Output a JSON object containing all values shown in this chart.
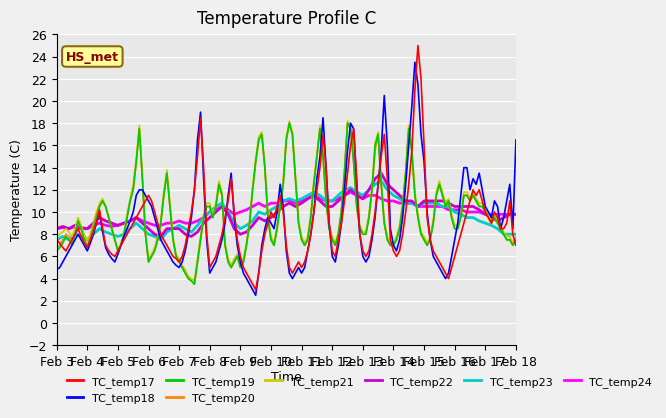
{
  "title": "Temperature Profile C",
  "xlabel": "Time",
  "ylabel": "Temperature (C)",
  "annotation": "HS_met",
  "ylim": [
    -2,
    26
  ],
  "series": {
    "TC_temp17": {
      "color": "#FF0000",
      "x_start": 3,
      "x_end": 18,
      "n": 151,
      "y": [
        7.5,
        7.2,
        6.8,
        6.5,
        7.0,
        7.5,
        8.0,
        8.5,
        7.8,
        7.2,
        6.8,
        7.5,
        8.2,
        9.0,
        10.2,
        8.5,
        7.0,
        6.5,
        6.2,
        6.0,
        6.5,
        7.0,
        7.5,
        8.0,
        8.5,
        9.0,
        9.5,
        10.0,
        10.5,
        11.0,
        11.5,
        11.0,
        10.0,
        9.0,
        8.0,
        7.5,
        7.0,
        6.5,
        6.0,
        5.8,
        5.5,
        6.0,
        7.0,
        8.5,
        10.0,
        12.0,
        15.0,
        18.5,
        14.0,
        8.0,
        5.0,
        5.5,
        6.0,
        7.0,
        8.0,
        9.5,
        11.0,
        13.0,
        10.0,
        7.5,
        6.0,
        5.0,
        4.5,
        4.0,
        3.5,
        3.0,
        4.5,
        6.5,
        8.0,
        9.0,
        10.0,
        9.5,
        10.5,
        11.5,
        10.0,
        7.0,
        5.0,
        4.5,
        5.0,
        5.5,
        5.0,
        5.5,
        6.5,
        8.0,
        10.0,
        12.0,
        14.0,
        17.0,
        14.0,
        9.0,
        6.5,
        6.0,
        7.5,
        9.0,
        11.0,
        13.5,
        16.0,
        17.5,
        13.0,
        8.0,
        6.5,
        6.0,
        6.5,
        8.0,
        10.0,
        12.5,
        15.0,
        17.0,
        13.0,
        7.5,
        6.5,
        6.0,
        6.5,
        8.0,
        10.0,
        12.5,
        15.5,
        21.0,
        25.0,
        22.0,
        16.0,
        9.5,
        7.5,
        6.5,
        6.0,
        5.5,
        5.0,
        4.5,
        4.0,
        5.0,
        6.0,
        7.0,
        8.0,
        9.0,
        10.0,
        11.0,
        12.0,
        11.5,
        12.0,
        11.0,
        10.0,
        9.5,
        9.0,
        10.0,
        9.5,
        8.5,
        8.5,
        9.0,
        11.0,
        8.0,
        7.0
      ]
    },
    "TC_temp18": {
      "color": "#0000FF",
      "x_start": 3,
      "x_end": 18,
      "n": 151,
      "y": [
        4.8,
        5.0,
        5.5,
        6.0,
        6.5,
        7.0,
        7.5,
        8.0,
        7.5,
        7.0,
        6.5,
        7.2,
        8.0,
        9.0,
        10.0,
        8.2,
        6.8,
        6.2,
        5.8,
        5.5,
        6.2,
        7.0,
        7.8,
        8.5,
        9.2,
        10.0,
        11.5,
        12.0,
        12.0,
        11.5,
        11.0,
        10.5,
        9.5,
        8.5,
        7.5,
        7.0,
        6.5,
        6.0,
        5.5,
        5.2,
        5.0,
        5.5,
        6.5,
        8.0,
        9.5,
        12.0,
        16.5,
        19.0,
        13.0,
        7.5,
        4.5,
        5.0,
        5.5,
        6.5,
        7.5,
        9.0,
        11.5,
        13.5,
        9.5,
        7.0,
        5.5,
        4.5,
        4.0,
        3.5,
        3.0,
        2.5,
        4.5,
        7.0,
        8.5,
        9.5,
        9.0,
        8.5,
        10.0,
        12.5,
        10.5,
        6.5,
        4.5,
        4.0,
        4.5,
        5.0,
        4.5,
        5.0,
        6.5,
        8.0,
        10.0,
        13.0,
        15.0,
        18.5,
        14.0,
        9.0,
        6.0,
        5.5,
        7.0,
        9.0,
        12.0,
        15.5,
        18.0,
        17.5,
        12.5,
        8.0,
        6.0,
        5.5,
        6.0,
        7.5,
        9.5,
        12.5,
        15.5,
        20.5,
        16.0,
        8.5,
        7.0,
        6.5,
        7.5,
        9.5,
        12.5,
        16.0,
        19.5,
        23.5,
        21.5,
        17.0,
        14.5,
        10.0,
        7.5,
        6.0,
        5.5,
        5.0,
        4.5,
        4.0,
        4.5,
        6.0,
        7.5,
        9.0,
        11.5,
        14.0,
        14.0,
        12.0,
        13.0,
        12.5,
        13.5,
        12.0,
        10.5,
        10.0,
        9.5,
        11.0,
        10.5,
        8.5,
        9.5,
        11.0,
        12.5,
        8.5,
        16.5
      ]
    },
    "TC_temp19": {
      "color": "#00CC00",
      "x_start": 3,
      "x_end": 18,
      "n": 151,
      "y": [
        6.5,
        6.8,
        7.2,
        7.8,
        7.5,
        7.0,
        8.0,
        9.2,
        8.5,
        7.5,
        6.8,
        7.5,
        8.5,
        9.5,
        10.5,
        11.0,
        10.5,
        9.5,
        8.5,
        7.5,
        6.5,
        7.0,
        8.0,
        9.5,
        11.0,
        12.0,
        14.5,
        17.5,
        13.0,
        8.0,
        5.5,
        6.0,
        6.5,
        7.5,
        9.0,
        11.5,
        13.5,
        10.5,
        7.5,
        6.0,
        5.5,
        5.0,
        4.5,
        4.0,
        3.8,
        3.5,
        5.5,
        7.5,
        9.5,
        10.5,
        10.5,
        9.5,
        10.5,
        12.5,
        11.5,
        7.0,
        5.5,
        5.0,
        5.5,
        6.0,
        5.0,
        5.5,
        7.0,
        9.0,
        12.0,
        14.5,
        16.5,
        17.0,
        14.0,
        9.5,
        7.5,
        7.0,
        8.5,
        10.5,
        12.5,
        16.5,
        18.0,
        17.0,
        13.0,
        9.0,
        7.5,
        7.0,
        7.5,
        9.5,
        12.5,
        15.0,
        17.5,
        15.0,
        11.0,
        8.5,
        7.5,
        7.0,
        8.0,
        10.0,
        13.5,
        18.0,
        17.5,
        14.5,
        10.5,
        8.5,
        8.0,
        8.0,
        9.5,
        12.0,
        16.0,
        17.0,
        12.5,
        9.0,
        7.5,
        7.0,
        7.0,
        7.5,
        8.5,
        10.5,
        13.5,
        17.5,
        15.5,
        11.5,
        9.5,
        8.0,
        7.5,
        7.0,
        7.5,
        9.0,
        11.5,
        12.5,
        11.5,
        10.5,
        11.0,
        9.5,
        8.5,
        8.5,
        9.5,
        11.5,
        11.5,
        11.0,
        11.5,
        11.0,
        10.5,
        10.5,
        10.0,
        9.5,
        9.0,
        9.5,
        9.0,
        8.5,
        8.0,
        7.5,
        7.5,
        7.0,
        7.5
      ]
    },
    "TC_temp20": {
      "color": "#FF8800",
      "x_start": 3,
      "x_end": 18,
      "n": 151,
      "y": [
        6.8,
        7.0,
        7.5,
        8.0,
        7.8,
        7.2,
        8.0,
        9.0,
        8.5,
        7.5,
        7.0,
        7.8,
        8.8,
        9.8,
        10.5,
        11.0,
        10.5,
        9.5,
        8.5,
        7.5,
        6.5,
        7.0,
        8.0,
        9.5,
        11.0,
        12.0,
        14.5,
        17.5,
        13.0,
        8.0,
        5.5,
        6.0,
        6.5,
        7.5,
        9.0,
        11.5,
        13.5,
        10.5,
        7.5,
        6.0,
        5.5,
        5.0,
        4.5,
        4.0,
        3.8,
        3.5,
        5.5,
        7.5,
        9.5,
        10.5,
        10.5,
        9.5,
        10.5,
        12.5,
        11.5,
        7.0,
        5.5,
        5.0,
        5.5,
        6.0,
        5.0,
        5.5,
        7.0,
        9.0,
        12.0,
        14.5,
        16.5,
        17.0,
        14.0,
        9.5,
        7.5,
        7.0,
        8.5,
        10.5,
        12.5,
        16.5,
        18.0,
        17.0,
        13.0,
        9.0,
        7.5,
        7.0,
        7.5,
        9.5,
        12.5,
        15.0,
        17.5,
        15.0,
        11.0,
        8.5,
        7.5,
        7.0,
        8.0,
        10.0,
        13.5,
        18.0,
        17.5,
        14.5,
        10.5,
        8.5,
        8.0,
        8.0,
        9.5,
        12.0,
        15.5,
        17.0,
        12.5,
        9.0,
        7.5,
        7.0,
        7.0,
        7.5,
        8.5,
        10.5,
        13.5,
        17.5,
        15.5,
        11.5,
        9.5,
        8.0,
        7.5,
        7.0,
        7.5,
        9.0,
        11.5,
        12.5,
        11.5,
        10.5,
        11.0,
        9.5,
        8.5,
        8.5,
        9.5,
        11.5,
        11.5,
        11.0,
        11.5,
        11.0,
        10.5,
        10.5,
        10.0,
        9.5,
        9.0,
        9.5,
        9.0,
        8.5,
        8.0,
        7.5,
        7.5,
        7.0,
        7.5
      ]
    },
    "TC_temp21": {
      "color": "#CCCC00",
      "x_start": 3,
      "x_end": 18,
      "n": 151,
      "y": [
        7.8,
        8.0,
        8.2,
        8.5,
        8.2,
        7.8,
        8.5,
        9.5,
        8.8,
        8.0,
        7.5,
        8.0,
        9.0,
        10.0,
        10.8,
        11.2,
        10.5,
        9.5,
        8.5,
        7.5,
        6.5,
        7.2,
        8.2,
        9.8,
        11.2,
        12.5,
        14.8,
        17.8,
        13.2,
        8.2,
        5.8,
        6.2,
        6.8,
        7.8,
        9.2,
        11.8,
        13.8,
        10.8,
        7.8,
        6.2,
        5.8,
        5.2,
        4.8,
        4.2,
        4.0,
        3.8,
        5.8,
        7.8,
        9.8,
        10.8,
        10.8,
        9.8,
        10.8,
        12.8,
        11.8,
        7.2,
        5.8,
        5.2,
        5.8,
        6.2,
        5.2,
        5.8,
        7.2,
        9.2,
        12.2,
        14.8,
        16.8,
        17.2,
        14.2,
        9.8,
        7.8,
        7.2,
        8.8,
        10.8,
        12.8,
        16.8,
        18.2,
        17.2,
        13.2,
        9.2,
        7.8,
        7.2,
        7.8,
        9.8,
        12.8,
        15.2,
        17.8,
        15.2,
        11.2,
        8.8,
        7.8,
        7.2,
        8.2,
        10.2,
        13.8,
        18.2,
        17.8,
        14.8,
        10.8,
        8.8,
        8.2,
        8.2,
        9.8,
        12.2,
        16.2,
        17.2,
        12.8,
        9.2,
        7.8,
        7.2,
        7.2,
        7.8,
        8.8,
        10.8,
        13.8,
        17.8,
        15.8,
        11.8,
        9.8,
        8.2,
        7.8,
        7.2,
        7.8,
        9.2,
        11.8,
        12.8,
        11.8,
        10.8,
        11.2,
        9.8,
        8.8,
        8.8,
        9.8,
        11.8,
        11.8,
        11.2,
        11.8,
        11.2,
        10.8,
        10.8,
        10.2,
        9.8,
        9.2,
        9.8,
        9.2,
        8.8,
        8.2,
        7.8,
        7.8,
        7.2,
        7.8
      ]
    },
    "TC_temp22": {
      "color": "#CC00CC",
      "x_start": 3,
      "x_end": 18,
      "n": 76,
      "y": [
        8.5,
        8.7,
        8.5,
        8.8,
        8.6,
        8.5,
        9.0,
        9.5,
        9.2,
        9.0,
        8.8,
        9.0,
        9.2,
        9.5,
        9.0,
        8.5,
        8.0,
        7.8,
        8.5,
        8.5,
        8.5,
        8.0,
        7.8,
        8.2,
        9.0,
        9.5,
        10.0,
        10.5,
        9.8,
        8.5,
        8.0,
        8.2,
        8.8,
        9.5,
        9.2,
        9.5,
        10.0,
        10.5,
        10.8,
        10.5,
        10.8,
        11.2,
        11.5,
        11.0,
        10.5,
        10.5,
        11.0,
        11.5,
        12.0,
        11.5,
        11.2,
        12.0,
        13.0,
        13.5,
        12.5,
        12.0,
        11.5,
        11.0,
        11.0,
        10.5,
        11.0,
        11.0,
        11.0,
        11.0,
        10.8,
        10.5,
        10.5,
        10.5,
        10.5,
        10.2,
        9.8,
        9.5,
        9.2,
        9.5,
        9.8,
        9.8
      ]
    },
    "TC_temp23": {
      "color": "#00CCCC",
      "x_start": 3,
      "x_end": 18,
      "n": 76,
      "y": [
        7.5,
        7.8,
        7.5,
        8.0,
        7.8,
        7.5,
        8.0,
        8.5,
        8.2,
        8.0,
        7.8,
        8.0,
        8.5,
        9.0,
        8.5,
        8.0,
        7.8,
        7.5,
        8.2,
        8.5,
        8.8,
        8.5,
        8.2,
        8.8,
        9.5,
        10.0,
        10.5,
        10.8,
        10.0,
        9.0,
        8.5,
        8.8,
        9.2,
        10.0,
        9.8,
        10.2,
        10.5,
        11.0,
        11.2,
        11.0,
        11.2,
        11.5,
        11.8,
        11.5,
        11.0,
        11.0,
        11.5,
        12.0,
        12.2,
        11.8,
        11.5,
        12.0,
        12.5,
        12.8,
        12.0,
        11.5,
        11.2,
        10.8,
        10.8,
        10.5,
        10.8,
        10.8,
        10.8,
        10.5,
        10.5,
        10.0,
        9.8,
        9.5,
        9.5,
        9.2,
        9.0,
        8.8,
        8.5,
        8.0,
        8.0,
        8.0
      ]
    },
    "TC_temp24": {
      "color": "#FF00FF",
      "x_start": 3,
      "x_end": 18,
      "n": 76,
      "y": [
        8.5,
        8.6,
        8.5,
        8.7,
        8.5,
        8.5,
        8.8,
        9.0,
        8.8,
        8.7,
        8.8,
        9.0,
        9.2,
        9.5,
        9.2,
        9.0,
        8.8,
        8.8,
        9.0,
        9.0,
        9.2,
        9.0,
        9.0,
        9.2,
        9.5,
        10.0,
        10.2,
        10.5,
        10.2,
        9.8,
        10.0,
        10.2,
        10.5,
        10.8,
        10.5,
        10.8,
        10.8,
        11.0,
        11.0,
        10.8,
        11.0,
        11.2,
        11.5,
        11.2,
        11.0,
        11.0,
        11.2,
        11.5,
        11.8,
        11.5,
        11.2,
        11.5,
        11.5,
        11.2,
        11.0,
        11.0,
        10.8,
        10.8,
        10.8,
        10.5,
        10.5,
        10.5,
        10.5,
        10.5,
        10.2,
        10.2,
        10.2,
        10.0,
        10.0,
        10.0,
        9.8,
        9.8,
        9.8,
        9.8,
        9.8,
        9.8
      ]
    }
  },
  "xtick_labels": [
    "Feb 3",
    "Feb 4",
    "Feb 5",
    "Feb 6",
    "Feb 7",
    "Feb 8",
    "Feb 9",
    "Feb 10",
    "Feb 11",
    "Feb 12",
    "Feb 13",
    "Feb 14",
    "Feb 15",
    "Feb 16",
    "Feb 17",
    "Feb 18"
  ],
  "xtick_positions": [
    3,
    4,
    5,
    6,
    7,
    8,
    9,
    10,
    11,
    12,
    13,
    14,
    15,
    16,
    17,
    18
  ],
  "background_color": "#E8E8E8",
  "fig_background_color": "#F0F0F0",
  "legend_entries": [
    "TC_temp17",
    "TC_temp18",
    "TC_temp19",
    "TC_temp20",
    "TC_temp21",
    "TC_temp22",
    "TC_temp23",
    "TC_temp24"
  ],
  "legend_colors": [
    "#FF0000",
    "#0000FF",
    "#00CC00",
    "#FF8800",
    "#CCCC00",
    "#CC00CC",
    "#00CCCC",
    "#FF00FF"
  ]
}
